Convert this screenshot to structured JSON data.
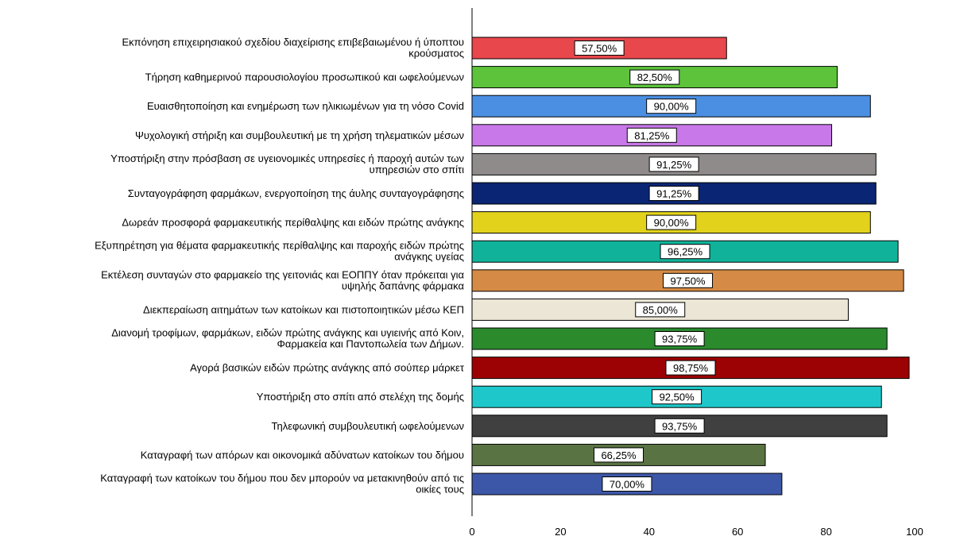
{
  "chart_data": {
    "type": "bar",
    "orientation": "horizontal",
    "categories": [
      [
        "Εκπόνηση επιχειρησιακού σχεδίου διαχείρισης επιβεβαιωμένου ή ύποπτου",
        "κρούσματος"
      ],
      [
        "Τήρηση καθημερινού παρουσιολογίου προσωπικού και ωφελούμενων"
      ],
      [
        "Ευαισθητοποίηση και ενημέρωση των ηλικιωμένων για τη νόσο Covid"
      ],
      [
        "Ψυχολογική στήριξη και συμβουλευτική με τη χρήση τηλεματικών μέσων"
      ],
      [
        "Υποστήριξη στην πρόσβαση σε υγειονομικές υπηρεσίες ή παροχή αυτών των",
        "υπηρεσιών στο σπίτι"
      ],
      [
        "Συνταγογράφηση φαρμάκων, ενεργοποίηση της άυλης συνταγογράφησης"
      ],
      [
        "Δωρεάν προσφορά φαρμακευτικής περίθαλψης και ειδών πρώτης ανάγκης"
      ],
      [
        "Εξυπηρέτηση για θέματα φαρμακευτικής περίθαλψης και παροχής ειδών πρώτης",
        "ανάγκης υγείας"
      ],
      [
        "Εκτέλεση συνταγών στο φαρμακείο της γειτονιάς και ΕΟΠΠΥ όταν πρόκειται για",
        "υψηλής δαπάνης φάρμακα"
      ],
      [
        "Διεκπεραίωση αιτημάτων των κατοίκων και πιστοποιητικών μέσω ΚΕΠ"
      ],
      [
        "Διανομή τροφίμων, φαρμάκων, ειδών πρώτης ανάγκης και υγιεινής από Κοιν,",
        "Φαρμακεία και Παντοπωλεία των Δήμων."
      ],
      [
        "Αγορά βασικών ειδών πρώτης ανάγκης από σούπερ μάρκετ"
      ],
      [
        "Υποστήριξη στο σπίτι από στελέχη της δομής"
      ],
      [
        "Τηλεφωνική συμβουλευτική ωφελούμενων"
      ],
      [
        "Καταγραφή των απόρων και οικονομικά αδύνατων κατοίκων του δήμου"
      ],
      [
        "Καταγραφή των κατοίκων του δήμου που δεν μπορούν να μετακινηθούν από τις",
        "οικίες τους"
      ]
    ],
    "values": [
      57.5,
      82.5,
      90.0,
      81.25,
      91.25,
      91.25,
      90.0,
      96.25,
      97.5,
      85.0,
      93.75,
      98.75,
      92.5,
      93.75,
      66.25,
      70.0
    ],
    "data_labels": [
      "57,50%",
      "82,50%",
      "90,00%",
      "81,25%",
      "91,25%",
      "91,25%",
      "90,00%",
      "96,25%",
      "97,50%",
      "85,00%",
      "93,75%",
      "98,75%",
      "92,50%",
      "93,75%",
      "66,25%",
      "70,00%"
    ],
    "colors": [
      "#e8474b",
      "#5cc33b",
      "#4b8fe3",
      "#c878e8",
      "#8f8b8b",
      "#0a2573",
      "#e2d21c",
      "#10b39a",
      "#d58b45",
      "#ebe6d5",
      "#2a8a2c",
      "#9c0204",
      "#1ec8ca",
      "#404040",
      "#5a7343",
      "#3c57a8"
    ],
    "xlim": [
      0,
      100
    ],
    "xticks": [
      0,
      20,
      40,
      60,
      80,
      100
    ],
    "title": "",
    "xlabel": "",
    "ylabel": "",
    "grid": false,
    "legend": "none"
  }
}
